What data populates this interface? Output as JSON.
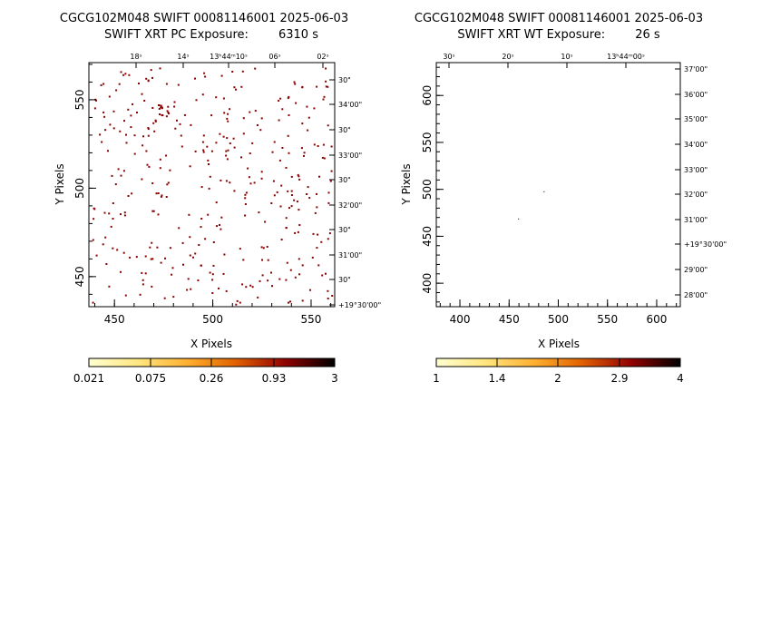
{
  "chart_data": [
    {
      "type": "heatmap",
      "title": "CGCG102M048 SWIFT 00081146001 2025-06-03",
      "subtitle": "SWIFT XRT PC Exposure:        6310 s",
      "xlabel": "X Pixels",
      "ylabel": "Y Pixels",
      "xlim": [
        437,
        562
      ],
      "ylim": [
        433,
        571
      ],
      "xticks": [
        450,
        500,
        550
      ],
      "yticks": [
        450,
        500,
        550
      ],
      "ra_ticks": [
        "18ˢ",
        "14ˢ",
        "13ʰ44ᵐ10ˢ",
        "06ˢ",
        "02ˢ"
      ],
      "dec_ticks": [
        "30\"",
        "34'00\"",
        "30\"",
        "33'00\"",
        "30\"",
        "32'00\"",
        "30\"",
        "31'00\"",
        "30\"",
        "+19°30'00\""
      ],
      "colorbar": {
        "ticks": [
          "0.021",
          "0.075",
          "0.26",
          "0.93",
          "3"
        ],
        "scale": "log"
      },
      "events_note": "sparse single-count pixels"
    },
    {
      "type": "heatmap",
      "title": "CGCG102M048 SWIFT 00081146001 2025-06-03",
      "subtitle": "SWIFT XRT WT Exposure:        26 s",
      "xlabel": "X Pixels",
      "ylabel": "Y Pixels",
      "xlim": [
        376,
        624
      ],
      "ylim": [
        375,
        635
      ],
      "xticks": [
        400,
        450,
        500,
        550,
        600
      ],
      "yticks": [
        400,
        450,
        500,
        550,
        600
      ],
      "ra_ticks": [
        "30ˢ",
        "20ˢ",
        "10ˢ",
        "13ʰ44ᵐ00ˢ"
      ],
      "dec_ticks": [
        "37'00\"",
        "36'00\"",
        "35'00\"",
        "34'00\"",
        "33'00\"",
        "32'00\"",
        "31'00\"",
        "+19°30'00\"",
        "29'00\"",
        "28'00\""
      ],
      "colorbar": {
        "ticks": [
          "1",
          "1.4",
          "2",
          "2.9",
          "4"
        ],
        "scale": "log"
      },
      "events": [
        {
          "x": 485,
          "y": 498
        },
        {
          "x": 459,
          "y": 469
        }
      ]
    }
  ],
  "colors": {
    "event": "#8b0000",
    "frame": "#000000"
  }
}
